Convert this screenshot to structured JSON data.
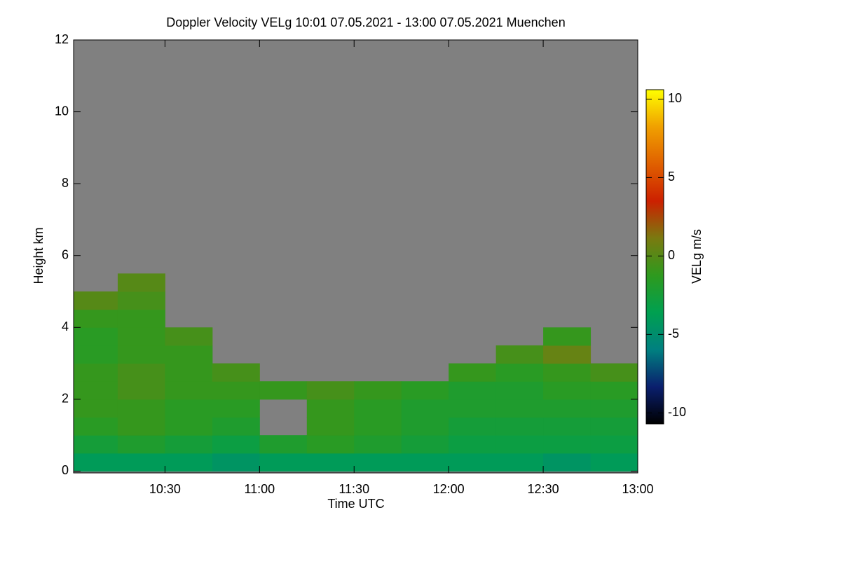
{
  "chart_data": {
    "type": "heatmap",
    "title": "Doppler Velocity VELg   10:01 07.05.2021 - 13:00 07.05.2021 Muenchen",
    "xlabel": "Time UTC",
    "ylabel": "Height km",
    "colorbar_label": "VELg m/s",
    "xlim": [
      10.0167,
      13.0
    ],
    "xticks": [
      {
        "value": 10.5,
        "label": "10:30"
      },
      {
        "value": 11.0,
        "label": "11:00"
      },
      {
        "value": 11.5,
        "label": "11:30"
      },
      {
        "value": 12.0,
        "label": "12:00"
      },
      {
        "value": 12.5,
        "label": "12:30"
      },
      {
        "value": 13.0,
        "label": "13:00"
      }
    ],
    "ylim": [
      -0.05,
      12
    ],
    "yticks": [
      0,
      2,
      4,
      6,
      8,
      10,
      12
    ],
    "clim": [
      -10.7,
      10.6
    ],
    "cticks": [
      -10,
      -5,
      0,
      5,
      10
    ],
    "colormap": [
      "#000000",
      "#0a1f6e",
      "#008080",
      "#00a050",
      "#2e9a1e",
      "#7a7a10",
      "#cc2000",
      "#e06000",
      "#f0a000",
      "#ffff00"
    ],
    "background": "#808080",
    "x": [
      10.125,
      10.375,
      10.625,
      10.875,
      11.125,
      11.375,
      11.625,
      11.875,
      12.125,
      12.375,
      12.625,
      12.875
    ],
    "y": [
      0.25,
      0.75,
      1.25,
      1.75,
      2.25,
      2.75,
      3.25,
      3.75,
      4.25,
      4.75,
      5.25
    ],
    "values": [
      [
        -4,
        -4,
        -4,
        -4.5,
        -4,
        -4,
        -4,
        -4,
        -4,
        -4,
        -4.5,
        -4
      ],
      [
        -2.5,
        -2,
        -2.5,
        -3,
        -2,
        -1.5,
        -2,
        -2.5,
        -3,
        -3,
        -3,
        -3
      ],
      [
        -1.5,
        -1,
        -1.5,
        -2,
        null,
        -1,
        -1.5,
        -2,
        -2.5,
        -2.5,
        -2.5,
        -2.5
      ],
      [
        -1,
        -1,
        -1.5,
        -1.5,
        null,
        -1,
        -1.5,
        -2,
        -2,
        -2,
        -2,
        -2
      ],
      [
        -1,
        -0.5,
        -1,
        -1,
        -1,
        -0.5,
        -1,
        -1.5,
        -2,
        -2,
        -1.5,
        -1.5
      ],
      [
        -1,
        -0.5,
        -1,
        -0.5,
        null,
        null,
        null,
        null,
        -1,
        -1.5,
        -1,
        -0.5
      ],
      [
        -1.5,
        -1,
        -1,
        null,
        null,
        null,
        null,
        null,
        null,
        -0.5,
        0.5,
        null
      ],
      [
        -1.5,
        -1,
        -0.5,
        null,
        null,
        null,
        null,
        null,
        null,
        null,
        -1,
        null
      ],
      [
        -1,
        -1,
        null,
        null,
        null,
        null,
        null,
        null,
        null,
        null,
        null,
        null
      ],
      [
        0,
        -0.5,
        null,
        null,
        null,
        null,
        null,
        null,
        null,
        null,
        null,
        null
      ],
      [
        null,
        0,
        null,
        null,
        null,
        null,
        null,
        null,
        null,
        null,
        null,
        null
      ]
    ]
  }
}
